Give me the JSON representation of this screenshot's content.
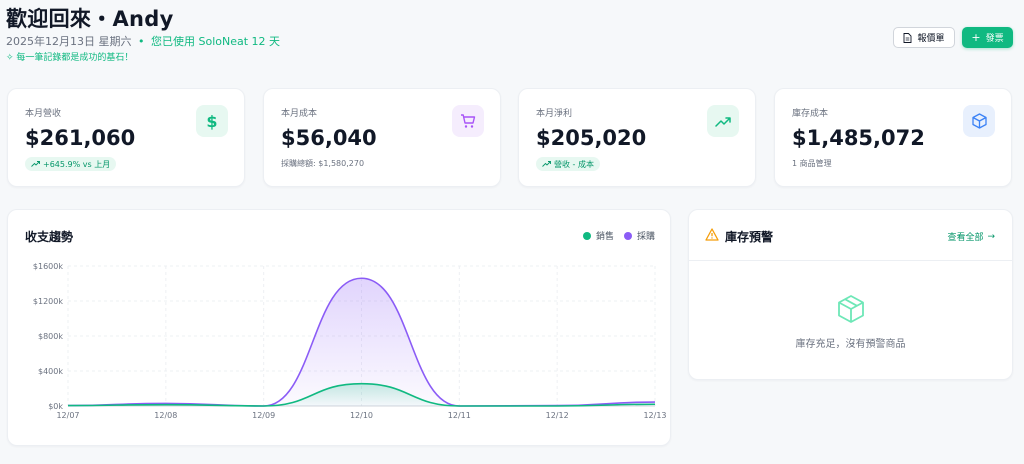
{
  "header": {
    "title": "歡迎回來・Andy",
    "date": "2025年12月13日 星期六",
    "separator": "•",
    "usage": "您已使用 SoloNeat 12 天",
    "motto_icon": "sparkle-icon",
    "motto": "每一筆記錄都是成功的基石！"
  },
  "actions": {
    "quote_label": "報價單",
    "quote_icon": "document-icon",
    "invoice_label": "發票",
    "invoice_icon": "plus-icon"
  },
  "stats": [
    {
      "label": "本月營收",
      "value": "$261,060",
      "badge": "+645.9% vs 上月",
      "icon": "dollar-icon",
      "icon_bg": "#e7f8f1",
      "icon_color": "#10b981"
    },
    {
      "label": "本月成本",
      "value": "$56,040",
      "sub": "採購總額: $1,580,270",
      "icon": "cart-icon",
      "icon_bg": "#f5edfd",
      "icon_color": "#a855f7"
    },
    {
      "label": "本月淨利",
      "value": "$205,020",
      "badge": "營收 - 成本",
      "icon": "trending-up-icon",
      "icon_bg": "#e7f8f1",
      "icon_color": "#10b981"
    },
    {
      "label": "庫存成本",
      "value": "$1,485,072",
      "sub": "1 商品管理",
      "icon": "cube-icon",
      "icon_bg": "#e8f0fd",
      "icon_color": "#3b82f6"
    }
  ],
  "trend": {
    "title": "收支趨勢",
    "legend_sales": "銷售",
    "legend_purchase": "採購"
  },
  "chart_data": {
    "type": "area",
    "title": "收支趨勢",
    "x": [
      "12/07",
      "12/08",
      "12/09",
      "12/10",
      "12/11",
      "12/12",
      "12/13"
    ],
    "y_ticks": [
      "$0k",
      "$400k",
      "$800k",
      "$1200k",
      "$1600k"
    ],
    "ylim": [
      0,
      1600
    ],
    "y_unit": "k",
    "grid": true,
    "legend_position": "top-right",
    "series": [
      {
        "name": "銷售",
        "color": "#10b981",
        "values": [
          5,
          15,
          0,
          255,
          0,
          0,
          20
        ]
      },
      {
        "name": "採購",
        "color": "#8b5cf6",
        "values": [
          5,
          30,
          0,
          1460,
          0,
          5,
          45
        ]
      }
    ]
  },
  "alerts": {
    "title": "庫存預警",
    "title_icon": "warning-icon",
    "view_all": "查看全部",
    "view_all_icon": "arrow-right-icon",
    "empty_icon": "package-icon",
    "empty_text": "庫存充足，沒有預警商品"
  }
}
